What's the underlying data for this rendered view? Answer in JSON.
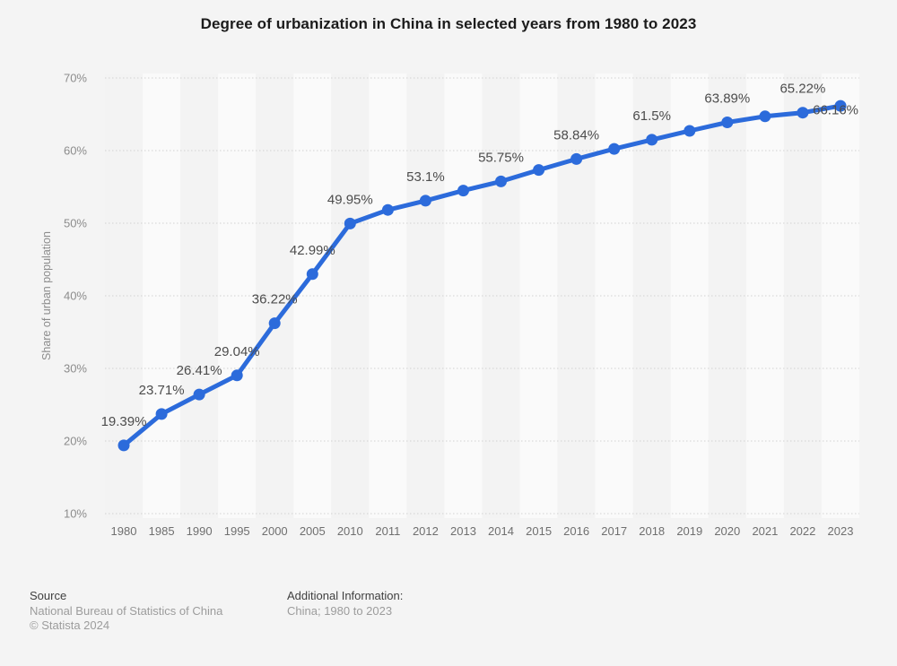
{
  "title": "Degree of urbanization in China in selected years from 1980 to 2023",
  "footer": {
    "source_heading": "Source",
    "source_name": "National Bureau of Statistics of China",
    "copyright": "© Statista 2024",
    "additional_heading": "Additional Information:",
    "additional_value": "China; 1980 to 2023"
  },
  "colors": {
    "accent_blue": "#2c6bdb",
    "gridline": "#d2d2d2",
    "band_light": "#fafafa",
    "band_dark": "#f3f3f3",
    "page_background": "#f4f4f4"
  },
  "chart_data": {
    "type": "line",
    "title": "Degree of urbanization in China in selected years from 1980 to 2023",
    "xlabel": "",
    "ylabel": "Share of urban population",
    "ylim": [
      10,
      70
    ],
    "y_ticks": [
      "70%",
      "60%",
      "50%",
      "40%",
      "30%",
      "20%",
      "10%"
    ],
    "grid": "horizontal-dotted",
    "legend": "none",
    "line_color": "#2c6bdb",
    "categories": [
      "1980",
      "1985",
      "1990",
      "1995",
      "2000",
      "2005",
      "2010",
      "2011",
      "2012",
      "2013",
      "2014",
      "2015",
      "2016",
      "2017",
      "2018",
      "2019",
      "2020",
      "2021",
      "2022",
      "2023"
    ],
    "values": [
      19.39,
      23.71,
      26.41,
      29.04,
      36.22,
      42.99,
      49.95,
      51.83,
      53.1,
      54.49,
      55.75,
      57.33,
      58.84,
      60.24,
      61.5,
      62.71,
      63.89,
      64.72,
      65.22,
      66.16
    ],
    "point_labels": [
      "19.39%",
      "23.71%",
      "26.41%",
      "29.04%",
      "36.22%",
      "42.99%",
      "49.95%",
      null,
      "53.1%",
      null,
      "55.75%",
      null,
      "58.84%",
      null,
      "61.5%",
      null,
      "63.89%",
      null,
      "65.22%",
      "66.16%"
    ],
    "last_label_position": "right"
  }
}
